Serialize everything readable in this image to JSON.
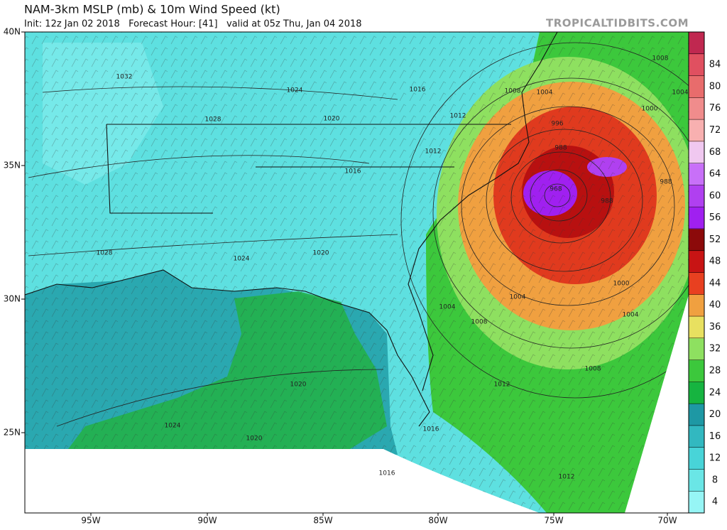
{
  "header": {
    "title": "NAM-3km MSLP (mb) & 10m Wind Speed (kt)",
    "subtitle": "Init: 12z Jan 02 2018   Forecast Hour: [41]   valid at 05z Thu, Jan 04 2018",
    "credit": "TROPICALTIDBITS.COM"
  },
  "map": {
    "lat_labels": [
      "40N",
      "35N",
      "30N",
      "25N"
    ],
    "lon_labels": [
      "95W",
      "90W",
      "85W",
      "80W",
      "75W",
      "70W"
    ],
    "isobar_labels": [
      "1032",
      "1024",
      "1028",
      "1020",
      "1016",
      "1012",
      "1012",
      "1016",
      "1024",
      "1020",
      "1028",
      "1020",
      "1024",
      "1020",
      "1016",
      "1016",
      "1012",
      "1012",
      "1008",
      "1004",
      "1000",
      "1008",
      "1004",
      "1004",
      "1004",
      "1008",
      "1008",
      "1004",
      "1000",
      "996",
      "988",
      "968",
      "988",
      "988"
    ]
  },
  "colorbar": {
    "ticks": [
      4,
      8,
      12,
      16,
      20,
      24,
      28,
      32,
      36,
      40,
      44,
      48,
      52,
      56,
      60,
      64,
      68,
      72,
      76,
      80,
      84
    ],
    "colors": [
      "#96f5f5",
      "#6ae6e6",
      "#48d4d8",
      "#32b8c0",
      "#1e98a4",
      "#16b440",
      "#3cc83c",
      "#8ee060",
      "#e8e060",
      "#f0a040",
      "#e84020",
      "#c81414",
      "#8c0a0a",
      "#a020f0",
      "#b040f0",
      "#c870f8",
      "#f0c8f0",
      "#f8b0b0",
      "#f08c8c",
      "#e86c6c",
      "#e05060",
      "#c02850"
    ]
  }
}
